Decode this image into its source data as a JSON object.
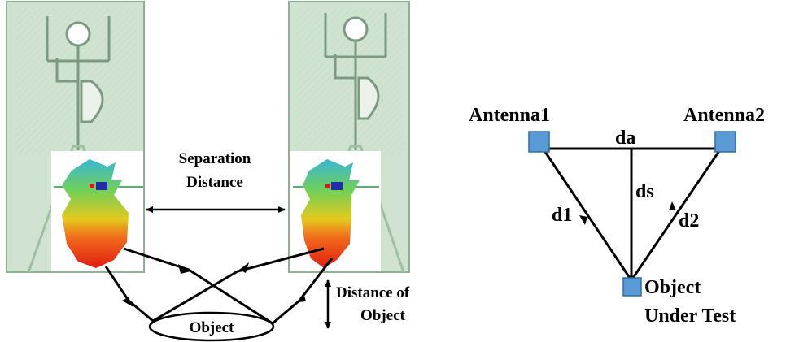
{
  "left_diagram": {
    "separation_label_1": "Separation",
    "separation_label_2": "Distance",
    "object_label": "Object",
    "distance_label_1": "Distance of",
    "distance_label_2": "Object"
  },
  "right_diagram": {
    "antenna1": "Antenna1",
    "antenna2": "Antenna2",
    "da": "da",
    "ds": "ds",
    "d1": "d1",
    "d2": "d2",
    "object_label_1": "Object",
    "object_label_2": "Under Test"
  },
  "colors": {
    "pcb_fill": "#cfe3d0",
    "pcb_border": "#8fb095",
    "node_fill": "#5b9bd5",
    "node_border": "#2e6da4"
  }
}
